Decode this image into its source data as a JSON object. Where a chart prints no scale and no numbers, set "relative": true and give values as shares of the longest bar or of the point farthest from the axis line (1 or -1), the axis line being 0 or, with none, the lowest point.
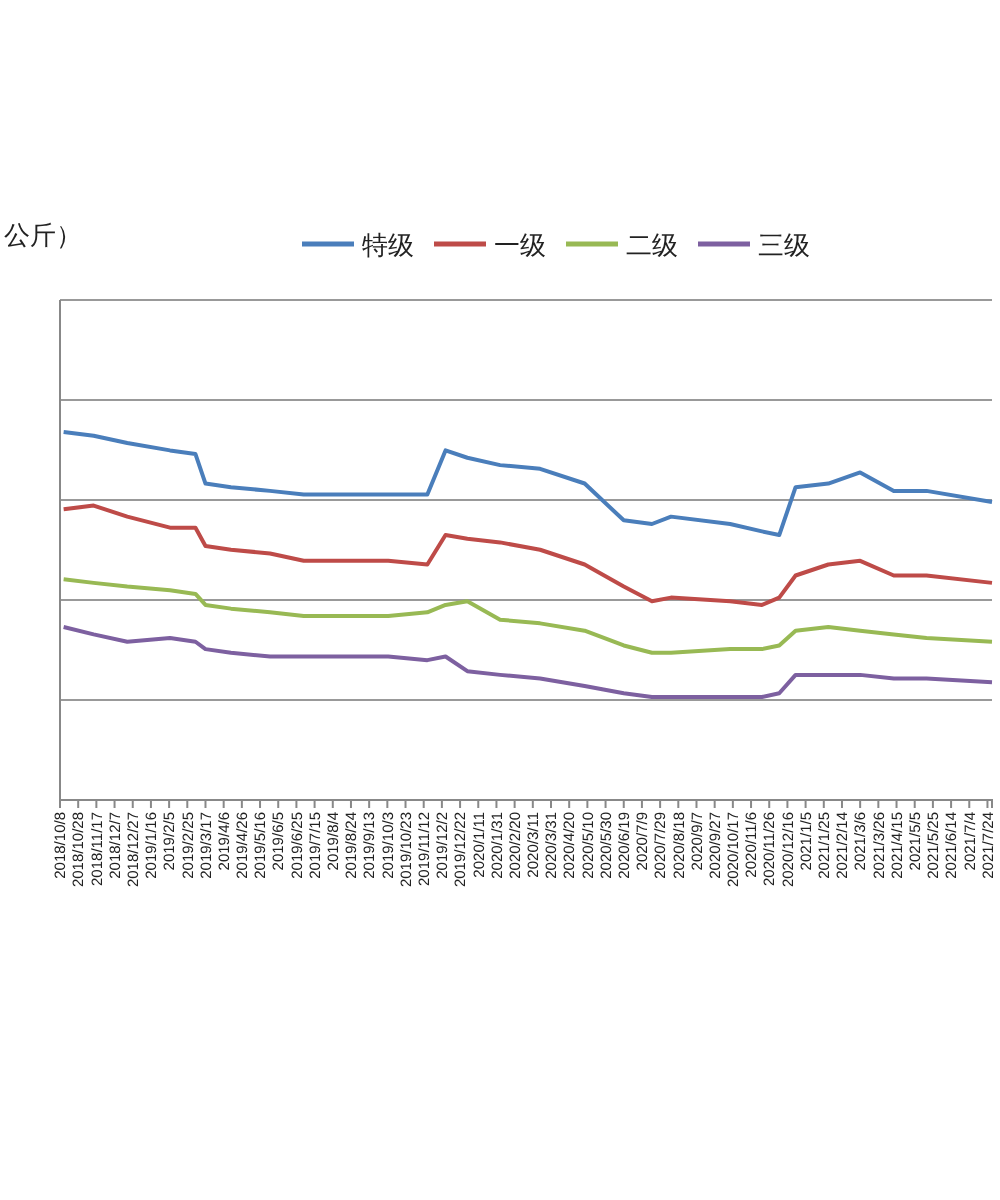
{
  "chart_data": {
    "type": "line",
    "relative": true,
    "annotations": [
      "公斤）"
    ],
    "legend": "top",
    "grid": "y",
    "marker": "none",
    "x": [
      "2018-10-12",
      "2018-11-14",
      "2018-12-21",
      "2019-02-06",
      "2019-03-06",
      "2019-03-17",
      "2019-04-14",
      "2019-05-27",
      "2019-07-03",
      "2019-10-04",
      "2019-11-16",
      "2019-12-06",
      "2019-12-30",
      "2020-02-04",
      "2020-03-19",
      "2020-05-07",
      "2020-06-19",
      "2020-07-20",
      "2020-08-10",
      "2020-10-14",
      "2020-11-18",
      "2020-12-07",
      "2020-12-25",
      "2021-01-30",
      "2021-03-06",
      "2021-04-12",
      "2021-05-18",
      "2021-07-29"
    ],
    "xlim": [
      "2018-10-08",
      "2021-07-29"
    ],
    "xticks": [
      {
        "value": "2018-10-08",
        "label": "2018/10/8"
      },
      {
        "value": "2018-10-28",
        "label": "2018/10/28"
      },
      {
        "value": "2018-11-17",
        "label": "2018/11/17"
      },
      {
        "value": "2018-12-07",
        "label": "2018/12/7"
      },
      {
        "value": "2018-12-27",
        "label": "2018/12/27"
      },
      {
        "value": "2019-01-16",
        "label": "2019/1/16"
      },
      {
        "value": "2019-02-05",
        "label": "2019/2/5"
      },
      {
        "value": "2019-02-25",
        "label": "2019/2/25"
      },
      {
        "value": "2019-03-17",
        "label": "2019/3/17"
      },
      {
        "value": "2019-04-06",
        "label": "2019/4/6"
      },
      {
        "value": "2019-04-26",
        "label": "2019/4/26"
      },
      {
        "value": "2019-05-16",
        "label": "2019/5/16"
      },
      {
        "value": "2019-06-05",
        "label": "2019/6/5"
      },
      {
        "value": "2019-06-25",
        "label": "2019/6/25"
      },
      {
        "value": "2019-07-15",
        "label": "2019/7/15"
      },
      {
        "value": "2019-08-04",
        "label": "2019/8/4"
      },
      {
        "value": "2019-08-24",
        "label": "2019/8/24"
      },
      {
        "value": "2019-09-13",
        "label": "2019/9/13"
      },
      {
        "value": "2019-10-03",
        "label": "2019/10/3"
      },
      {
        "value": "2019-10-23",
        "label": "2019/10/23"
      },
      {
        "value": "2019-11-12",
        "label": "2019/11/12"
      },
      {
        "value": "2019-12-02",
        "label": "2019/12/2"
      },
      {
        "value": "2019-12-22",
        "label": "2019/12/22"
      },
      {
        "value": "2020-01-11",
        "label": "2020/1/11"
      },
      {
        "value": "2020-01-31",
        "label": "2020/1/31"
      },
      {
        "value": "2020-02-20",
        "label": "2020/2/20"
      },
      {
        "value": "2020-03-11",
        "label": "2020/3/11"
      },
      {
        "value": "2020-03-31",
        "label": "2020/3/31"
      },
      {
        "value": "2020-04-20",
        "label": "2020/4/20"
      },
      {
        "value": "2020-05-10",
        "label": "2020/5/10"
      },
      {
        "value": "2020-05-30",
        "label": "2020/5/30"
      },
      {
        "value": "2020-06-19",
        "label": "2020/6/19"
      },
      {
        "value": "2020-07-09",
        "label": "2020/7/9"
      },
      {
        "value": "2020-07-29",
        "label": "2020/7/29"
      },
      {
        "value": "2020-08-18",
        "label": "2020/8/18"
      },
      {
        "value": "2020-09-07",
        "label": "2020/9/7"
      },
      {
        "value": "2020-09-27",
        "label": "2020/9/27"
      },
      {
        "value": "2020-10-17",
        "label": "2020/10/17"
      },
      {
        "value": "2020-11-06",
        "label": "2020/11/6"
      },
      {
        "value": "2020-11-26",
        "label": "2020/11/26"
      },
      {
        "value": "2020-12-16",
        "label": "2020/12/16"
      },
      {
        "value": "2021-01-05",
        "label": "2021/1/5"
      },
      {
        "value": "2021-01-25",
        "label": "2021/1/25"
      },
      {
        "value": "2021-02-14",
        "label": "2021/2/14"
      },
      {
        "value": "2021-03-06",
        "label": "2021/3/6"
      },
      {
        "value": "2021-03-26",
        "label": "2021/3/26"
      },
      {
        "value": "2021-04-15",
        "label": "2021/4/15"
      },
      {
        "value": "2021-05-05",
        "label": "2021/5/5"
      },
      {
        "value": "2021-05-25",
        "label": "2021/5/25"
      },
      {
        "value": "2021-06-14",
        "label": "2021/6/14"
      },
      {
        "value": "2021-07-04",
        "label": "2021/7/4"
      },
      {
        "value": "2021-07-24",
        "label": "2021/7/24"
      }
    ],
    "series": [
      {
        "name": "特级",
        "color": "#4a7ebb",
        "values": [
          1.0,
          0.99,
          0.97,
          0.95,
          0.94,
          0.86,
          0.85,
          0.84,
          0.83,
          0.83,
          0.83,
          0.95,
          0.93,
          0.91,
          0.9,
          0.86,
          0.76,
          0.75,
          0.77,
          0.75,
          0.73,
          0.72,
          0.85,
          0.86,
          0.89,
          0.84,
          0.84,
          0.81
        ]
      },
      {
        "name": "一级",
        "color": "#be4b48",
        "values": [
          0.79,
          0.8,
          0.77,
          0.74,
          0.74,
          0.69,
          0.68,
          0.67,
          0.65,
          0.65,
          0.64,
          0.72,
          0.71,
          0.7,
          0.68,
          0.64,
          0.58,
          0.54,
          0.55,
          0.54,
          0.53,
          0.55,
          0.61,
          0.64,
          0.65,
          0.61,
          0.61,
          0.59
        ]
      },
      {
        "name": "二级",
        "color": "#98b954",
        "values": [
          0.6,
          0.59,
          0.58,
          0.57,
          0.56,
          0.53,
          0.52,
          0.51,
          0.5,
          0.5,
          0.51,
          0.53,
          0.54,
          0.49,
          0.48,
          0.46,
          0.42,
          0.4,
          0.4,
          0.41,
          0.41,
          0.42,
          0.46,
          0.47,
          0.46,
          0.45,
          0.44,
          0.43
        ]
      },
      {
        "name": "三级",
        "color": "#7d60a0",
        "values": [
          0.47,
          0.45,
          0.43,
          0.44,
          0.43,
          0.41,
          0.4,
          0.39,
          0.39,
          0.39,
          0.38,
          0.39,
          0.35,
          0.34,
          0.33,
          0.31,
          0.29,
          0.28,
          0.28,
          0.28,
          0.28,
          0.29,
          0.34,
          0.34,
          0.34,
          0.33,
          0.33,
          0.32
        ]
      }
    ]
  }
}
